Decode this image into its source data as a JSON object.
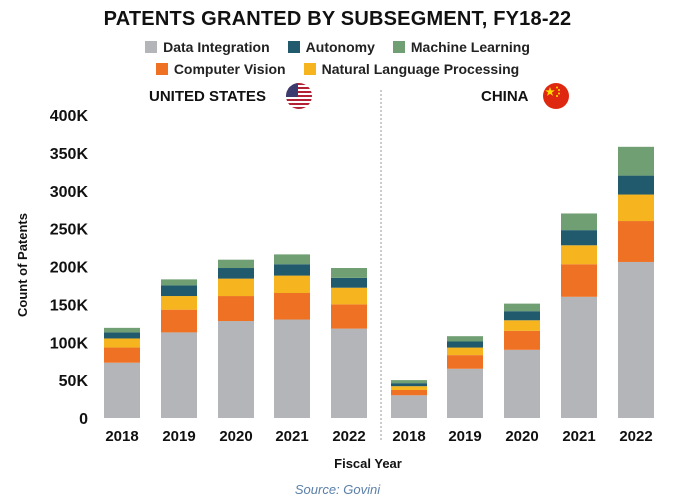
{
  "chart_data": {
    "type": "bar",
    "stacked": true,
    "title": "PATENTS GRANTED BY SUBSEGMENT, FY18-22",
    "xlabel": "Fiscal Year",
    "ylabel": "Count of Patents",
    "ylim": [
      0,
      400000
    ],
    "yticks": [
      {
        "value": 0,
        "label": "0"
      },
      {
        "value": 50000,
        "label": "50K"
      },
      {
        "value": 100000,
        "label": "100K"
      },
      {
        "value": 150000,
        "label": "150K"
      },
      {
        "value": 200000,
        "label": "200K"
      },
      {
        "value": 250000,
        "label": "250K"
      },
      {
        "value": 300000,
        "label": "300K"
      },
      {
        "value": 350000,
        "label": "350K"
      },
      {
        "value": 400000,
        "label": "400K"
      }
    ],
    "legend": {
      "row1": [
        "Data Integration",
        "Autonomy",
        "Machine Learning"
      ],
      "row2": [
        "Computer Vision",
        "Natural Language Processing"
      ]
    },
    "series_colors": {
      "Data Integration": "#b3b5b8",
      "Computer Vision": "#ee7124",
      "Natural Language Processing": "#f6b51e",
      "Autonomy": "#215a6c",
      "Machine Learning": "#6f9f72"
    },
    "groups": [
      {
        "name": "UNITED STATES",
        "categories": [
          "2018",
          "2019",
          "2020",
          "2021",
          "2022"
        ],
        "series": [
          {
            "name": "Data Integration",
            "values": [
              73000,
              113000,
              128000,
              130000,
              118000
            ]
          },
          {
            "name": "Computer Vision",
            "values": [
              20000,
              30000,
              33000,
              35000,
              32000
            ]
          },
          {
            "name": "Natural Language Processing",
            "values": [
              12000,
              18000,
              23000,
              23000,
              22000
            ]
          },
          {
            "name": "Autonomy",
            "values": [
              8000,
              14000,
              14000,
              15000,
              13000
            ]
          },
          {
            "name": "Machine Learning",
            "values": [
              6000,
              8000,
              11000,
              13000,
              13000
            ]
          }
        ]
      },
      {
        "name": "CHINA",
        "categories": [
          "2018",
          "2019",
          "2020",
          "2021",
          "2022"
        ],
        "series": [
          {
            "name": "Data Integration",
            "values": [
              30000,
              65000,
              90000,
              160000,
              206000
            ]
          },
          {
            "name": "Computer Vision",
            "values": [
              7000,
              18000,
              25000,
              43000,
              54000
            ]
          },
          {
            "name": "Natural Language Processing",
            "values": [
              5000,
              10000,
              14000,
              25000,
              35000
            ]
          },
          {
            "name": "Autonomy",
            "values": [
              4000,
              8000,
              12000,
              20000,
              25000
            ]
          },
          {
            "name": "Machine Learning",
            "values": [
              4000,
              7000,
              10000,
              22000,
              38000
            ]
          }
        ]
      }
    ],
    "grid": false,
    "legend_position": "top-center"
  },
  "source": "Source: Govini",
  "flags": {
    "us": "us-flag-icon",
    "china": "china-flag-icon"
  }
}
